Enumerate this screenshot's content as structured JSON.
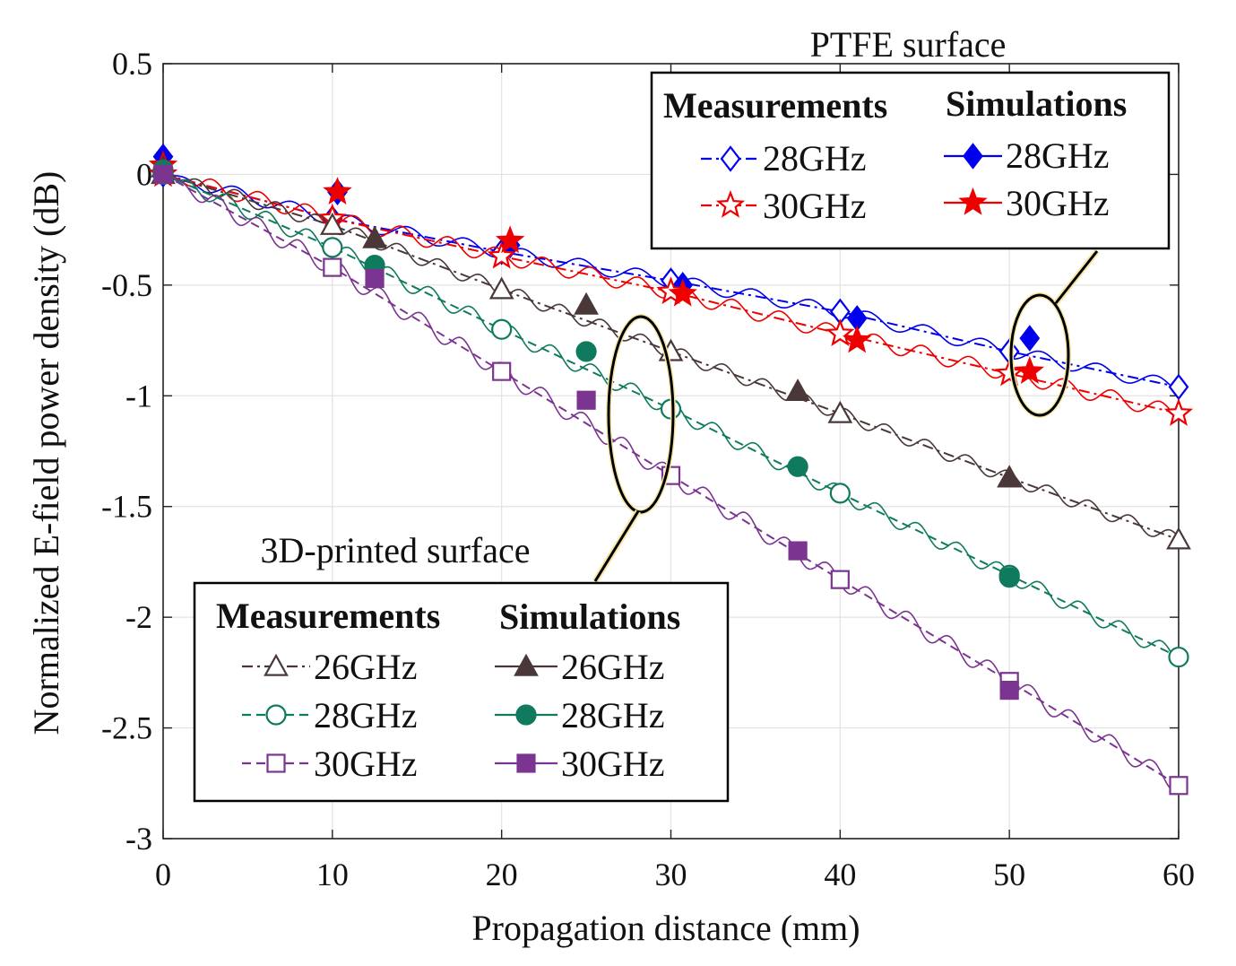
{
  "chart_data": {
    "type": "line",
    "title": "",
    "xlabel": "Propagation distance (mm)",
    "ylabel": "Normalized E-field power density (dB)",
    "xlim": [
      0,
      60
    ],
    "ylim": [
      -3,
      0.5
    ],
    "xticks": [
      0,
      10,
      20,
      30,
      40,
      50,
      60
    ],
    "xtick_labels": [
      "0",
      "10",
      "20",
      "30",
      "40",
      "50",
      "60"
    ],
    "yticks": [
      0.5,
      0,
      -0.5,
      -1,
      -1.5,
      -2,
      -2.5,
      -3
    ],
    "ytick_labels": [
      "0.5",
      "0",
      "-0.5",
      "-1",
      "-1.5",
      "-2",
      "-2.5",
      "-3"
    ],
    "grid": true,
    "groups": [
      {
        "title": "PTFE surface",
        "measurements_header": "Measurements",
        "simulations_header": "Simulations",
        "entries": [
          {
            "label": "28GHz",
            "color": "#0000ee"
          },
          {
            "label": "30GHz",
            "color": "#ee0000"
          }
        ]
      },
      {
        "title": "3D-printed surface",
        "measurements_header": "Measurements",
        "simulations_header": "Simulations",
        "entries": [
          {
            "label": "26GHz",
            "color": "#4a3838"
          },
          {
            "label": "28GHz",
            "color": "#0f7a5e"
          },
          {
            "label": "30GHz",
            "color": "#7b3590"
          }
        ]
      }
    ],
    "series": [
      {
        "name": "PTFE 28GHz measurement",
        "surface": "PTFE",
        "kind": "measurement",
        "frequency": "28GHz",
        "color": "#0000ee",
        "marker": "diamond-open",
        "dash": "dashdot",
        "trend": [
          [
            0,
            0
          ],
          [
            10,
            -0.2
          ],
          [
            20,
            -0.35
          ],
          [
            30,
            -0.48
          ],
          [
            40,
            -0.62
          ],
          [
            50,
            -0.8
          ],
          [
            60,
            -0.96
          ]
        ],
        "ripple": {
          "amplitude": 0.03,
          "period": 3.4
        },
        "markers": [
          [
            0,
            0
          ],
          [
            10,
            -0.2
          ],
          [
            20,
            -0.35
          ],
          [
            30,
            -0.48
          ],
          [
            40,
            -0.62
          ],
          [
            50,
            -0.8
          ],
          [
            60,
            -0.96
          ]
        ]
      },
      {
        "name": "PTFE 28GHz simulation",
        "surface": "PTFE",
        "kind": "simulation",
        "frequency": "28GHz",
        "color": "#0000ee",
        "marker": "diamond-filled",
        "markers": [
          [
            0,
            0.08
          ],
          [
            10.3,
            -0.08
          ],
          [
            20.5,
            -0.32
          ],
          [
            30.7,
            -0.5
          ],
          [
            41,
            -0.65
          ],
          [
            51.2,
            -0.74
          ]
        ]
      },
      {
        "name": "PTFE 30GHz measurement",
        "surface": "PTFE",
        "kind": "measurement",
        "frequency": "30GHz",
        "color": "#ee0000",
        "marker": "star-open",
        "dash": "dashdot",
        "trend": [
          [
            0,
            0
          ],
          [
            10,
            -0.2
          ],
          [
            20,
            -0.37
          ],
          [
            30,
            -0.53
          ],
          [
            40,
            -0.72
          ],
          [
            50,
            -0.9
          ],
          [
            60,
            -1.08
          ]
        ],
        "ripple": {
          "amplitude": 0.035,
          "period": 2.8
        },
        "markers": [
          [
            0,
            0
          ],
          [
            10,
            -0.2
          ],
          [
            20,
            -0.37
          ],
          [
            30,
            -0.53
          ],
          [
            40,
            -0.72
          ],
          [
            50,
            -0.9
          ],
          [
            60,
            -1.08
          ]
        ]
      },
      {
        "name": "PTFE 30GHz simulation",
        "surface": "PTFE",
        "kind": "simulation",
        "frequency": "30GHz",
        "color": "#ee0000",
        "marker": "star-filled",
        "markers": [
          [
            0,
            0.04
          ],
          [
            10.3,
            -0.08
          ],
          [
            20.5,
            -0.3
          ],
          [
            30.7,
            -0.54
          ],
          [
            41,
            -0.75
          ],
          [
            51.2,
            -0.89
          ]
        ]
      },
      {
        "name": "3D-printed 26GHz measurement",
        "surface": "3D-printed",
        "kind": "measurement",
        "frequency": "26GHz",
        "color": "#4a3838",
        "marker": "triangle-open",
        "dash": "dashdot",
        "trend": [
          [
            0,
            0
          ],
          [
            10,
            -0.23
          ],
          [
            20,
            -0.52
          ],
          [
            30,
            -0.8
          ],
          [
            40,
            -1.08
          ],
          [
            50,
            -1.37
          ],
          [
            60,
            -1.65
          ]
        ],
        "ripple": {
          "amplitude": 0.03,
          "period": 2.4
        },
        "markers": [
          [
            0,
            0
          ],
          [
            10,
            -0.23
          ],
          [
            20,
            -0.52
          ],
          [
            30,
            -0.8
          ],
          [
            40,
            -1.08
          ],
          [
            50,
            -1.37
          ],
          [
            60,
            -1.65
          ]
        ]
      },
      {
        "name": "3D-printed 26GHz simulation",
        "surface": "3D-printed",
        "kind": "simulation",
        "frequency": "26GHz",
        "color": "#4a3838",
        "marker": "triangle-filled",
        "markers": [
          [
            0,
            0.03
          ],
          [
            12.5,
            -0.29
          ],
          [
            25,
            -0.59
          ],
          [
            37.5,
            -0.98
          ],
          [
            50,
            -1.37
          ]
        ]
      },
      {
        "name": "3D-printed 28GHz measurement",
        "surface": "3D-printed",
        "kind": "measurement",
        "frequency": "28GHz",
        "color": "#0f7a5e",
        "marker": "circle-open",
        "dash": "dashed",
        "trend": [
          [
            0,
            0
          ],
          [
            10,
            -0.33
          ],
          [
            20,
            -0.7
          ],
          [
            30,
            -1.06
          ],
          [
            40,
            -1.44
          ],
          [
            50,
            -1.81
          ],
          [
            60,
            -2.18
          ]
        ],
        "ripple": {
          "amplitude": 0.035,
          "period": 2.4
        },
        "markers": [
          [
            0,
            0
          ],
          [
            10,
            -0.33
          ],
          [
            20,
            -0.7
          ],
          [
            30,
            -1.06
          ],
          [
            40,
            -1.44
          ],
          [
            50,
            -1.81
          ],
          [
            60,
            -2.18
          ]
        ]
      },
      {
        "name": "3D-printed 28GHz simulation",
        "surface": "3D-printed",
        "kind": "simulation",
        "frequency": "28GHz",
        "color": "#0f7a5e",
        "marker": "circle-filled",
        "markers": [
          [
            0,
            0.02
          ],
          [
            12.5,
            -0.41
          ],
          [
            25,
            -0.8
          ],
          [
            37.5,
            -1.32
          ],
          [
            50,
            -1.82
          ]
        ]
      },
      {
        "name": "3D-printed 30GHz measurement",
        "surface": "3D-printed",
        "kind": "measurement",
        "frequency": "30GHz",
        "color": "#7b3590",
        "marker": "square-open",
        "dash": "dashed",
        "trend": [
          [
            0,
            0
          ],
          [
            10,
            -0.42
          ],
          [
            20,
            -0.89
          ],
          [
            30,
            -1.36
          ],
          [
            40,
            -1.83
          ],
          [
            50,
            -2.29
          ],
          [
            60,
            -2.76
          ]
        ],
        "ripple": {
          "amplitude": 0.04,
          "period": 2.4
        },
        "markers": [
          [
            0,
            0
          ],
          [
            10,
            -0.42
          ],
          [
            20,
            -0.89
          ],
          [
            30,
            -1.36
          ],
          [
            40,
            -1.83
          ],
          [
            50,
            -2.29
          ],
          [
            60,
            -2.76
          ]
        ]
      },
      {
        "name": "3D-printed 30GHz simulation",
        "surface": "3D-printed",
        "kind": "simulation",
        "frequency": "30GHz",
        "color": "#7b3590",
        "marker": "square-filled",
        "markers": [
          [
            0,
            0
          ],
          [
            12.5,
            -0.47
          ],
          [
            25,
            -1.02
          ],
          [
            37.5,
            -1.7
          ],
          [
            50,
            -2.33
          ]
        ]
      }
    ]
  }
}
